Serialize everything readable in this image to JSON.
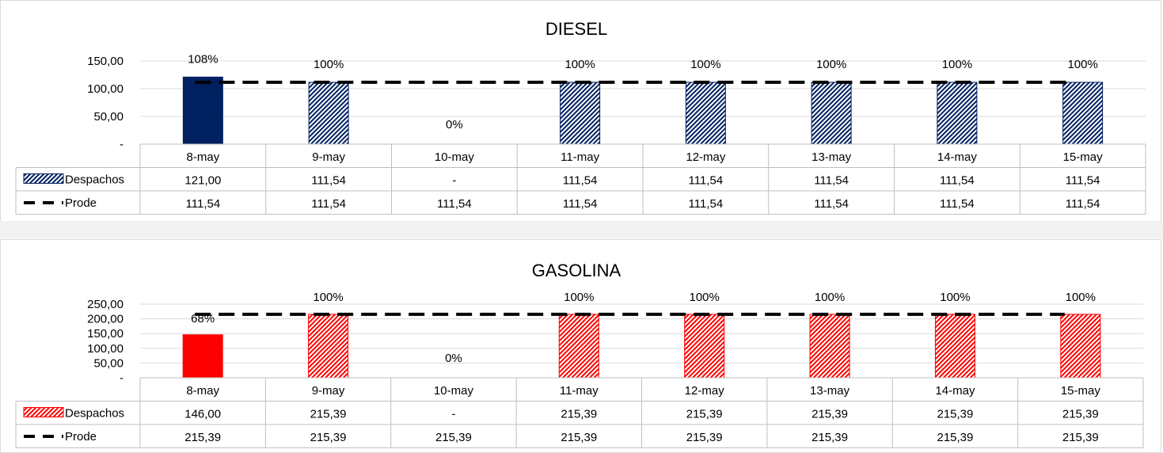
{
  "colors": {
    "diesel_bar": "#002060",
    "gasolina_bar": "#ff0000",
    "prode_line": "#000000",
    "grid": "#d9d9d9",
    "table_border": "#bfbfbf"
  },
  "chart_data": [
    {
      "type": "bar",
      "title": "DIESEL",
      "categories": [
        "8-may",
        "9-may",
        "10-may",
        "11-may",
        "12-may",
        "13-may",
        "14-may",
        "15-may"
      ],
      "ylim": [
        0,
        150
      ],
      "yticks": [
        "150,00",
        "100,00",
        "50,00",
        "-"
      ],
      "ytick_values": [
        150,
        100,
        50,
        0
      ],
      "series": [
        {
          "name": "Despachos",
          "type": "bar",
          "values": [
            121.0,
            111.54,
            0,
            111.54,
            111.54,
            111.54,
            111.54,
            111.54
          ],
          "table": [
            "121,00",
            "111,54",
            "-",
            "111,54",
            "111,54",
            "111,54",
            "111,54",
            "111,54"
          ],
          "pattern": [
            "solid",
            "hatched",
            "hatched",
            "hatched",
            "hatched",
            "hatched",
            "hatched",
            "hatched"
          ]
        },
        {
          "name": "Prode",
          "type": "line-dashed",
          "values": [
            111.54,
            111.54,
            111.54,
            111.54,
            111.54,
            111.54,
            111.54,
            111.54
          ],
          "table": [
            "111,54",
            "111,54",
            "111,54",
            "111,54",
            "111,54",
            "111,54",
            "111,54",
            "111,54"
          ]
        }
      ],
      "data_labels": [
        "108%",
        "100%",
        "0%",
        "100%",
        "100%",
        "100%",
        "100%",
        "100%"
      ]
    },
    {
      "type": "bar",
      "title": "GASOLINA",
      "categories": [
        "8-may",
        "9-may",
        "10-may",
        "11-may",
        "12-may",
        "13-may",
        "14-may",
        "15-may"
      ],
      "ylim": [
        0,
        250
      ],
      "yticks": [
        "250,00",
        "200,00",
        "150,00",
        "100,00",
        "50,00",
        "-"
      ],
      "ytick_values": [
        250,
        200,
        150,
        100,
        50,
        0
      ],
      "series": [
        {
          "name": "Despachos",
          "type": "bar",
          "values": [
            146.0,
            215.39,
            0,
            215.39,
            215.39,
            215.39,
            215.39,
            215.39
          ],
          "table": [
            "146,00",
            "215,39",
            "-",
            "215,39",
            "215,39",
            "215,39",
            "215,39",
            "215,39"
          ],
          "pattern": [
            "solid",
            "hatched",
            "hatched",
            "hatched",
            "hatched",
            "hatched",
            "hatched",
            "hatched"
          ]
        },
        {
          "name": "Prode",
          "type": "line-dashed",
          "values": [
            215.39,
            215.39,
            215.39,
            215.39,
            215.39,
            215.39,
            215.39,
            215.39
          ],
          "table": [
            "215,39",
            "215,39",
            "215,39",
            "215,39",
            "215,39",
            "215,39",
            "215,39",
            "215,39"
          ]
        }
      ],
      "data_labels": [
        "68%",
        "100%",
        "0%",
        "100%",
        "100%",
        "100%",
        "100%",
        "100%"
      ]
    }
  ]
}
